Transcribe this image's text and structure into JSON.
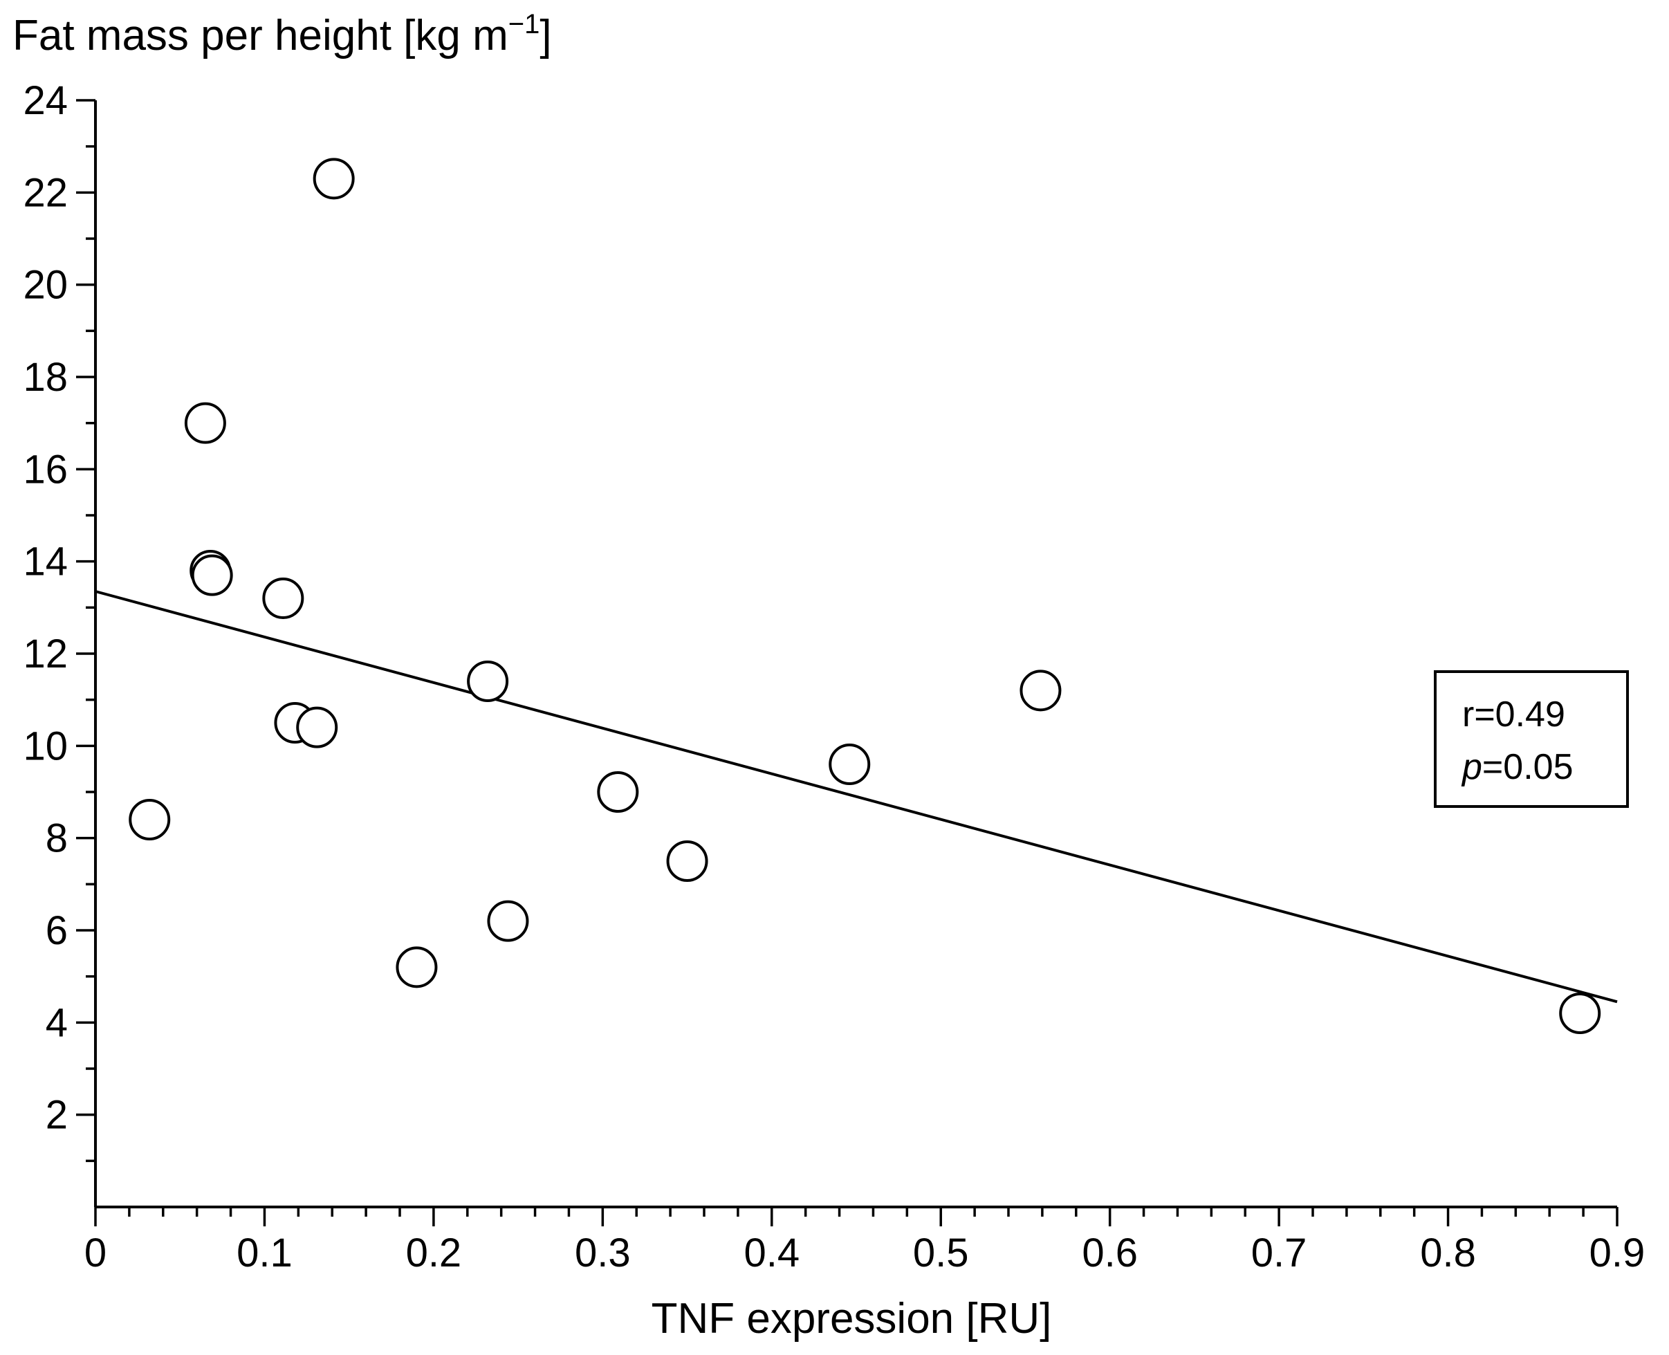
{
  "chart_data": {
    "type": "scatter",
    "title": "",
    "xlabel": "TNF expression [RU]",
    "ylabel_main": "Fat mass per height [kg m",
    "ylabel_sup": "−1",
    "ylabel_close": "]",
    "xlim": [
      0,
      0.9
    ],
    "ylim": [
      0,
      24
    ],
    "x_ticks": [
      "0",
      "0.1",
      "0.2",
      "0.3",
      "0.4",
      "0.5",
      "0.6",
      "0.7",
      "0.8",
      "0.9"
    ],
    "x_tick_values": [
      0,
      0.1,
      0.2,
      0.3,
      0.4,
      0.5,
      0.6,
      0.7,
      0.8,
      0.9
    ],
    "x_minor_step": 0.02,
    "y_ticks": [
      "2",
      "4",
      "6",
      "8",
      "10",
      "12",
      "14",
      "16",
      "18",
      "20",
      "22",
      "24"
    ],
    "y_tick_values": [
      2,
      4,
      6,
      8,
      10,
      12,
      14,
      16,
      18,
      20,
      22,
      24
    ],
    "y_minor_step": 1,
    "points": [
      {
        "x": 0.032,
        "y": 8.4
      },
      {
        "x": 0.065,
        "y": 17.0
      },
      {
        "x": 0.068,
        "y": 13.8
      },
      {
        "x": 0.069,
        "y": 13.7
      },
      {
        "x": 0.111,
        "y": 13.2
      },
      {
        "x": 0.118,
        "y": 10.5
      },
      {
        "x": 0.131,
        "y": 10.4
      },
      {
        "x": 0.141,
        "y": 22.3
      },
      {
        "x": 0.19,
        "y": 5.2
      },
      {
        "x": 0.232,
        "y": 11.4
      },
      {
        "x": 0.244,
        "y": 6.2
      },
      {
        "x": 0.309,
        "y": 9.0
      },
      {
        "x": 0.35,
        "y": 7.5
      },
      {
        "x": 0.446,
        "y": 9.6
      },
      {
        "x": 0.559,
        "y": 11.2
      },
      {
        "x": 0.878,
        "y": 4.2
      }
    ],
    "fit_line": {
      "x": [
        0,
        0.9
      ],
      "y": [
        13.35,
        4.45
      ]
    },
    "annotation": {
      "r_text": "r=0.49",
      "p_label": "p",
      "p_value": "=0.05",
      "position": "right"
    }
  }
}
